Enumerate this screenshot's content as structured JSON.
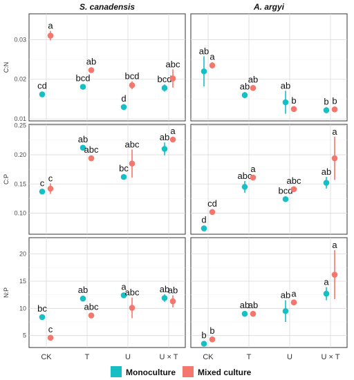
{
  "chart_data": {
    "type": "scatter",
    "facets": {
      "columns": [
        "S. canadensis",
        "A. argyi"
      ],
      "rows": [
        "C:N",
        "C:P",
        "N:P"
      ]
    },
    "categories": [
      "CK",
      "T",
      "U",
      "U × T"
    ],
    "legend": {
      "position": "bottom",
      "items": [
        {
          "name": "Monoculture",
          "color": "#15BFC4"
        },
        {
          "name": "Mixed culture",
          "color": "#F4766D"
        }
      ]
    },
    "colors": {
      "Monoculture": "#15BFC4",
      "Mixed culture": "#F4766D"
    },
    "grid": true,
    "rows": [
      {
        "ylabel": "C:N",
        "ylim": [
          0.0095,
          0.0365
        ],
        "yticks": [
          0.01,
          0.02,
          0.03
        ],
        "yticklabels": [
          "0.01",
          "0.02",
          "0.03"
        ],
        "panels": [
          {
            "facet": "S. canadensis",
            "series": [
              {
                "name": "Monoculture",
                "values": [
                  0.0162,
                  0.0181,
                  0.013,
                  0.0178
                ],
                "errors": [
                  0.0005,
                  0.0004,
                  0.0004,
                  0.0009
                ],
                "labels": [
                  "cd",
                  "bcd",
                  "d",
                  "bcd"
                ]
              },
              {
                "name": "Mixed culture",
                "values": [
                  0.031,
                  0.0223,
                  0.0185,
                  0.0202
                ],
                "errors": [
                  0.0012,
                  0.0006,
                  0.001,
                  0.0023
                ],
                "labels": [
                  "a",
                  "ab",
                  "bcd",
                  "abc"
                ]
              }
            ]
          },
          {
            "facet": "A. argyi",
            "series": [
              {
                "name": "Monoculture",
                "values": [
                  0.022,
                  0.016,
                  0.0142,
                  0.0122
                ],
                "errors": [
                  0.0038,
                  0.0008,
                  0.0029,
                  0.0008
                ],
                "labels": [
                  "ab",
                  "ab",
                  "ab",
                  "b"
                ]
              },
              {
                "name": "Mixed culture",
                "values": [
                  0.0235,
                  0.0178,
                  0.0125,
                  0.0124
                ],
                "errors": [
                  0.0008,
                  0.0004,
                  0.0003,
                  0.0004
                ],
                "labels": [
                  "a",
                  "ab",
                  "b",
                  "b"
                ]
              }
            ]
          }
        ]
      },
      {
        "ylabel": "C:P",
        "ylim": [
          0.064,
          0.252
        ],
        "yticks": [
          0.1,
          0.15,
          0.2,
          0.25
        ],
        "yticklabels": [
          "0.10",
          "0.15",
          "0.20",
          "0.25"
        ],
        "panels": [
          {
            "facet": "S. canadensis",
            "series": [
              {
                "name": "Monoculture",
                "values": [
                  0.137,
                  0.212,
                  0.162,
                  0.21
                ],
                "errors": [
                  0.004,
                  0.004,
                  0.003,
                  0.011
                ],
                "labels": [
                  "c",
                  "ab",
                  "bc",
                  "ab"
                ]
              },
              {
                "name": "Mixed culture",
                "values": [
                  0.142,
                  0.194,
                  0.185,
                  0.226
                ],
                "errors": [
                  0.009,
                  0.004,
                  0.024,
                  0.004
                ],
                "labels": [
                  "c",
                  "abc",
                  "abc",
                  "a"
                ]
              }
            ]
          },
          {
            "facet": "A. argyi",
            "series": [
              {
                "name": "Monoculture",
                "values": [
                  0.074,
                  0.145,
                  0.124,
                  0.152
                ],
                "errors": [
                  0.004,
                  0.01,
                  0.003,
                  0.01
                ],
                "labels": [
                  "d",
                  "abc",
                  "bcd",
                  "ab"
                ]
              },
              {
                "name": "Mixed culture",
                "values": [
                  0.102,
                  0.161,
                  0.141,
                  0.194
                ],
                "errors": [
                  0.003,
                  0.004,
                  0.005,
                  0.037
                ],
                "labels": [
                  "cd",
                  "a",
                  "abc",
                  "a"
                ]
              }
            ]
          }
        ]
      },
      {
        "ylabel": "N:P",
        "ylim": [
          2.8,
          23.0
        ],
        "yticks": [
          5,
          10,
          15,
          20
        ],
        "yticklabels": [
          "5",
          "10",
          "15",
          "20"
        ],
        "panels": [
          {
            "facet": "S. canadensis",
            "series": [
              {
                "name": "Monoculture",
                "values": [
                  8.4,
                  11.8,
                  12.4,
                  11.9
                ],
                "errors": [
                  0.3,
                  0.3,
                  0.3,
                  0.7
                ],
                "labels": [
                  "bc",
                  "ab",
                  "a",
                  "ab"
                ]
              },
              {
                "name": "Mixed culture",
                "values": [
                  4.6,
                  8.7,
                  10.1,
                  11.3
                ],
                "errors": [
                  0.3,
                  0.3,
                  1.9,
                  1.1
                ],
                "labels": [
                  "c",
                  "abc",
                  "abc",
                  "ab"
                ]
              }
            ]
          },
          {
            "facet": "A. argyi",
            "series": [
              {
                "name": "Monoculture",
                "values": [
                  3.5,
                  9.0,
                  9.5,
                  12.7
                ],
                "errors": [
                  0.4,
                  0.3,
                  2.0,
                  1.2
                ],
                "labels": [
                  "b",
                  "ab",
                  "ab",
                  "a"
                ]
              },
              {
                "name": "Mixed culture",
                "values": [
                  4.3,
                  9.0,
                  11.1,
                  16.2
                ],
                "errors": [
                  0.3,
                  0.3,
                  0.4,
                  4.5
                ],
                "labels": [
                  "b",
                  "ab",
                  "a",
                  "a"
                ]
              }
            ]
          }
        ]
      }
    ]
  }
}
